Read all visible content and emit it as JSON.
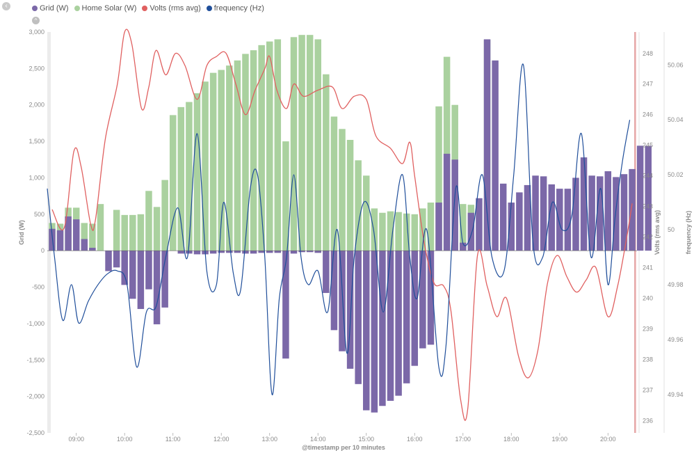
{
  "ui": {
    "collapse_icon": "‹",
    "toggle_icon": "^"
  },
  "colors": {
    "grid": "#7b68a8",
    "solar": "#aad19f",
    "volts": "#e06060",
    "freq": "#1f4e9a"
  },
  "chart_data": {
    "type": "bar+line",
    "legend_position": "top-left",
    "legend": [
      {
        "key": "grid",
        "label": "Grid (W)"
      },
      {
        "key": "solar",
        "label": "Home Solar (W)"
      },
      {
        "key": "volts",
        "label": "Volts (rms avg)"
      },
      {
        "key": "freq",
        "label": "frequency (Hz)"
      }
    ],
    "xlabel": "@timestamp per 10 minutes",
    "x_range_hours": [
      8.4,
      20.6
    ],
    "x_ticks": [
      {
        "t": 9,
        "label": "09:00"
      },
      {
        "t": 10,
        "label": "10:00"
      },
      {
        "t": 11,
        "label": "11:00"
      },
      {
        "t": 12,
        "label": "12:00"
      },
      {
        "t": 13,
        "label": "13:00"
      },
      {
        "t": 14,
        "label": "14:00"
      },
      {
        "t": 15,
        "label": "15:00"
      },
      {
        "t": 16,
        "label": "16:00"
      },
      {
        "t": 17,
        "label": "17:00"
      },
      {
        "t": 18,
        "label": "18:00"
      },
      {
        "t": 19,
        "label": "19:00"
      },
      {
        "t": 20,
        "label": "20:00"
      }
    ],
    "y_left": {
      "label": "Grid (W)",
      "range": [
        -2500,
        3000
      ],
      "ticks": [
        "3,000",
        "2,500",
        "2,000",
        "1,500",
        "1,000",
        "500",
        "0",
        "-500",
        "-1,000",
        "-1,500",
        "-2,000",
        "-2,500"
      ],
      "tick_values": [
        3000,
        2500,
        2000,
        1500,
        1000,
        500,
        0,
        -500,
        -1000,
        -1500,
        -2000,
        -2500
      ]
    },
    "y_volts": {
      "label": "Volts (rms avg)",
      "range": [
        235.6,
        248.7
      ],
      "ticks": [
        "248",
        "247",
        "246",
        "245",
        "244",
        "243",
        "242",
        "241",
        "240",
        "239",
        "238",
        "237",
        "236"
      ],
      "tick_values": [
        248,
        247,
        246,
        245,
        244,
        243,
        242,
        241,
        240,
        239,
        238,
        237,
        236
      ]
    },
    "y_freq": {
      "label": "frequency (Hz)",
      "range": [
        49.926,
        50.072
      ],
      "ticks": [
        "50.06",
        "50.04",
        "50.02",
        "50",
        "49.98",
        "49.96",
        "49.94"
      ],
      "tick_values": [
        50.06,
        50.04,
        50.02,
        50.0,
        49.98,
        49.96,
        49.94
      ]
    },
    "bar_start_hour": 8.5,
    "bar_step_hours": 0.16667,
    "series_grid": [
      300,
      280,
      470,
      430,
      160,
      40,
      0,
      -280,
      -230,
      -470,
      -660,
      -800,
      -530,
      -1010,
      -780,
      0,
      -40,
      -40,
      -50,
      -50,
      -40,
      -30,
      -30,
      -30,
      -40,
      -40,
      -30,
      -30,
      -30,
      -1480,
      -40,
      -20,
      -20,
      -30,
      -580,
      -1090,
      -1380,
      -1620,
      -1830,
      -2190,
      -2220,
      -2130,
      -2060,
      -1990,
      -1820,
      -1580,
      -1340,
      -1290,
      660,
      1330,
      1250,
      110,
      520,
      720,
      2900,
      2610,
      920,
      660,
      800,
      900,
      1030,
      1020,
      910,
      850,
      850,
      1000,
      1280,
      1030,
      1020,
      1090,
      1010,
      1050,
      1120,
      1440,
      1440
    ],
    "series_solar": [
      380,
      370,
      590,
      590,
      380,
      370,
      640,
      0,
      560,
      490,
      490,
      500,
      820,
      600,
      970,
      1860,
      1970,
      2040,
      2160,
      2320,
      2440,
      2480,
      2540,
      2610,
      2700,
      2750,
      2820,
      2870,
      2900,
      1500,
      2930,
      2960,
      2960,
      2900,
      2420,
      1840,
      1670,
      1520,
      1240,
      1030,
      580,
      520,
      540,
      530,
      510,
      500,
      580,
      660,
      1980,
      2660,
      2000,
      640,
      630,
      0,
      2890,
      0,
      0,
      0,
      0,
      0,
      0,
      0,
      0,
      0,
      0,
      0,
      0,
      0,
      0,
      0,
      0,
      0,
      0,
      0,
      0
    ],
    "series_volts": [
      [
        8.5,
        242.9
      ],
      [
        8.75,
        242.3
      ],
      [
        8.95,
        244.8
      ],
      [
        9.1,
        244.3
      ],
      [
        9.3,
        242.4
      ],
      [
        9.4,
        242.6
      ],
      [
        9.6,
        245.2
      ],
      [
        9.85,
        247.0
      ],
      [
        10.0,
        248.7
      ],
      [
        10.15,
        248.3
      ],
      [
        10.35,
        246.2
      ],
      [
        10.5,
        246.9
      ],
      [
        10.65,
        248.1
      ],
      [
        10.85,
        247.3
      ],
      [
        11.05,
        248.0
      ],
      [
        11.25,
        247.6
      ],
      [
        11.5,
        246.5
      ],
      [
        11.7,
        247.6
      ],
      [
        11.9,
        247.9
      ],
      [
        12.1,
        248.0
      ],
      [
        12.3,
        247.0
      ],
      [
        12.5,
        246.0
      ],
      [
        12.7,
        246.8
      ],
      [
        12.9,
        247.5
      ],
      [
        13.0,
        247.9
      ],
      [
        13.15,
        246.8
      ],
      [
        13.35,
        246.2
      ],
      [
        13.5,
        247.0
      ],
      [
        13.7,
        246.6
      ],
      [
        14.0,
        246.8
      ],
      [
        14.3,
        246.9
      ],
      [
        14.5,
        246.2
      ],
      [
        14.75,
        246.6
      ],
      [
        15.0,
        246.5
      ],
      [
        15.2,
        245.3
      ],
      [
        15.5,
        244.9
      ],
      [
        15.75,
        244.4
      ],
      [
        15.9,
        245.1
      ],
      [
        16.0,
        244.0
      ],
      [
        16.2,
        241.8
      ],
      [
        16.4,
        240.5
      ],
      [
        16.6,
        240.4
      ],
      [
        16.75,
        239.6
      ],
      [
        16.95,
        236.7
      ],
      [
        17.1,
        236.4
      ],
      [
        17.3,
        241.4
      ],
      [
        17.5,
        240.4
      ],
      [
        17.7,
        239.4
      ],
      [
        17.9,
        240.0
      ],
      [
        18.15,
        238.1
      ],
      [
        18.35,
        237.4
      ],
      [
        18.55,
        238.3
      ],
      [
        18.75,
        240.5
      ],
      [
        18.95,
        241.4
      ],
      [
        19.15,
        240.7
      ],
      [
        19.35,
        240.2
      ],
      [
        19.55,
        240.6
      ],
      [
        19.75,
        241.0
      ],
      [
        20.0,
        239.4
      ],
      [
        20.2,
        240.4
      ],
      [
        20.4,
        242.1
      ],
      [
        20.5,
        243.1
      ]
    ],
    "series_freq": [
      [
        8.4,
        50.015
      ],
      [
        8.55,
        49.99
      ],
      [
        8.72,
        49.967
      ],
      [
        8.9,
        49.98
      ],
      [
        9.05,
        49.966
      ],
      [
        9.25,
        49.974
      ],
      [
        9.45,
        49.98
      ],
      [
        9.65,
        49.984
      ],
      [
        9.85,
        49.985
      ],
      [
        10.05,
        49.98
      ],
      [
        10.25,
        49.95
      ],
      [
        10.45,
        49.97
      ],
      [
        10.65,
        49.972
      ],
      [
        10.85,
        49.99
      ],
      [
        11.1,
        50.008
      ],
      [
        11.3,
        49.99
      ],
      [
        11.5,
        50.035
      ],
      [
        11.7,
        49.985
      ],
      [
        11.9,
        49.98
      ],
      [
        12.05,
        50.01
      ],
      [
        12.25,
        49.984
      ],
      [
        12.4,
        49.978
      ],
      [
        12.6,
        50.015
      ],
      [
        12.75,
        50.02
      ],
      [
        12.9,
        49.99
      ],
      [
        13.05,
        49.94
      ],
      [
        13.2,
        49.975
      ],
      [
        13.35,
        49.99
      ],
      [
        13.5,
        50.02
      ],
      [
        13.65,
        49.99
      ],
      [
        13.8,
        49.98
      ],
      [
        14.0,
        49.985
      ],
      [
        14.2,
        49.97
      ],
      [
        14.4,
        50.0
      ],
      [
        14.6,
        49.955
      ],
      [
        14.75,
        49.99
      ],
      [
        14.95,
        50.01
      ],
      [
        15.15,
        50.0
      ],
      [
        15.35,
        49.97
      ],
      [
        15.55,
        50.0
      ],
      [
        15.75,
        50.02
      ],
      [
        15.9,
        49.99
      ],
      [
        16.05,
        49.975
      ],
      [
        16.25,
        50.0
      ],
      [
        16.5,
        49.95
      ],
      [
        16.65,
        49.958
      ],
      [
        16.85,
        50.015
      ],
      [
        17.0,
        49.995
      ],
      [
        17.2,
        50.0
      ],
      [
        17.4,
        50.02
      ],
      [
        17.6,
        49.99
      ],
      [
        17.85,
        49.985
      ],
      [
        18.05,
        50.02
      ],
      [
        18.25,
        50.06
      ],
      [
        18.45,
        49.995
      ],
      [
        18.65,
        49.99
      ],
      [
        18.85,
        50.01
      ],
      [
        19.05,
        50.0
      ],
      [
        19.25,
        50.005
      ],
      [
        19.45,
        50.035
      ],
      [
        19.65,
        49.99
      ],
      [
        19.85,
        50.015
      ],
      [
        20.0,
        49.98
      ],
      [
        20.15,
        50.005
      ],
      [
        20.3,
        50.025
      ],
      [
        20.45,
        50.04
      ]
    ]
  }
}
